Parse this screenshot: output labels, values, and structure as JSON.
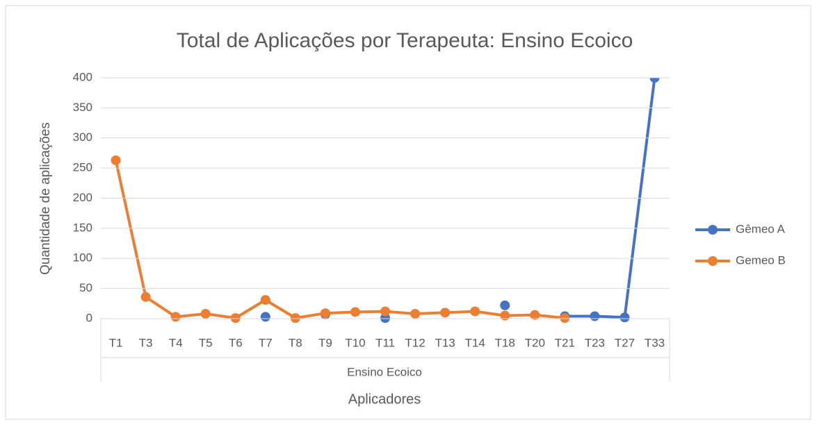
{
  "chart_data": {
    "type": "line",
    "title": "Total de Aplicações por Terapeuta: Ensino Ecoico",
    "y_label": "Quantidade de aplicações",
    "x_label": "Aplicadores",
    "x_group": "Ensino Ecoico",
    "categories": [
      "T1",
      "T3",
      "T4",
      "T5",
      "T6",
      "T7",
      "T8",
      "T9",
      "T10",
      "T11",
      "T12",
      "T13",
      "T14",
      "T18",
      "T20",
      "T21",
      "T23",
      "T27",
      "T33"
    ],
    "series": [
      {
        "name": "Gêmeo A",
        "color": "#4472c4",
        "values": [
          null,
          null,
          null,
          null,
          null,
          3,
          null,
          7,
          null,
          1,
          null,
          null,
          null,
          22,
          null,
          4,
          4,
          2,
          400
        ]
      },
      {
        "name": "Gemeo B",
        "color": "#ed7d31",
        "values": [
          263,
          36,
          3,
          8,
          1,
          31,
          1,
          9,
          11,
          12,
          8,
          10,
          12,
          5,
          6,
          1,
          null,
          null,
          null
        ]
      }
    ],
    "ylim": [
      0,
      400
    ],
    "yticks": [
      0,
      50,
      100,
      150,
      200,
      250,
      300,
      350,
      400
    ],
    "grid": true,
    "legend": "right"
  }
}
